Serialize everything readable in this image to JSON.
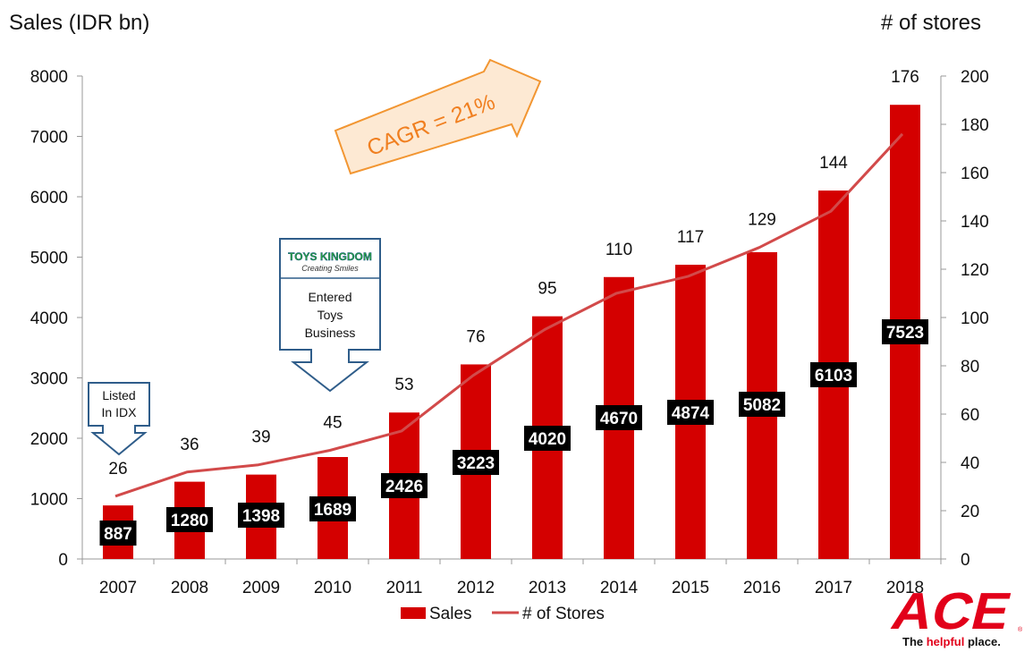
{
  "chart_data": {
    "type": "bar",
    "title_left": "Sales (IDR bn)",
    "title_right": "# of stores",
    "categories": [
      "2007",
      "2008",
      "2009",
      "2010",
      "2011",
      "2012",
      "2013",
      "2014",
      "2015",
      "2016",
      "2017",
      "2018"
    ],
    "series": [
      {
        "name": "Sales",
        "type": "bar",
        "axis": "left",
        "color": "#d40000",
        "values": [
          887,
          1280,
          1398,
          1689,
          2426,
          3223,
          4020,
          4670,
          4874,
          5082,
          6103,
          7523
        ],
        "labels": [
          "887",
          "1280",
          "1398",
          "1689",
          "2426",
          "3223",
          "4020",
          "4670",
          "4874",
          "5082",
          "6103",
          "7523"
        ]
      },
      {
        "name": "# of Stores",
        "type": "line",
        "axis": "right",
        "color": "#d24a4a",
        "values": [
          26,
          36,
          39,
          45,
          53,
          76,
          95,
          110,
          117,
          129,
          144,
          176
        ],
        "labels": [
          "26",
          "36",
          "39",
          "45",
          "53",
          "76",
          "95",
          "110",
          "117",
          "129",
          "144",
          "176"
        ]
      }
    ],
    "ylim_left": [
      0,
      8000
    ],
    "yticks_left": [
      "0",
      "1000",
      "2000",
      "3000",
      "4000",
      "5000",
      "6000",
      "7000",
      "8000"
    ],
    "ylim_right": [
      0,
      200
    ],
    "yticks_right": [
      "0",
      "20",
      "40",
      "60",
      "80",
      "100",
      "120",
      "140",
      "160",
      "180",
      "200"
    ],
    "legend": {
      "position": "bottom",
      "sales_label": "Sales",
      "stores_label": "# of Stores"
    },
    "annotations": {
      "cagr": "CAGR = 21%",
      "listed_line1": "Listed",
      "listed_line2": "In IDX",
      "entered_line1": "Entered",
      "entered_line2": "Toys",
      "entered_line3": "Business",
      "toys_logo_text": "TOYS KINGDOM",
      "toys_logo_tagline": "Creating Smiles"
    }
  },
  "brand": {
    "logo_text": "ACE",
    "tagline_prefix": "The ",
    "tagline_highlight": "helpful",
    "tagline_suffix": " place.",
    "registered": "®",
    "red": "#e2001a"
  },
  "colors": {
    "bar": "#d40000",
    "line": "#d24a4a",
    "label_box": "#000000",
    "label_text": "#ffffff",
    "arrow_fill": "#fde9d3",
    "arrow_stroke": "#f29632",
    "arrow_text": "#f07f20",
    "callout_stroke": "#2f5d8a"
  }
}
